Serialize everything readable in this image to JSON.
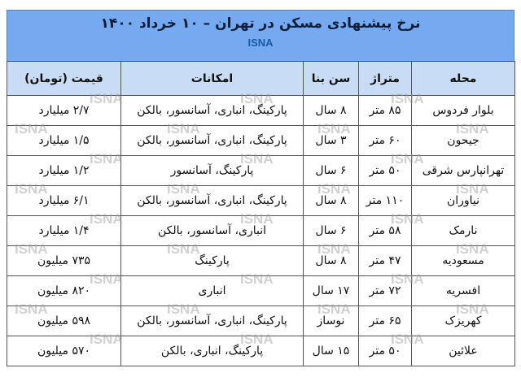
{
  "title": "نرخ پیشنهادی مسکن در تهران – ۱۰ خرداد ۱۴۰۰",
  "source": "ISNA",
  "watermark": "ISNA",
  "colors": {
    "title_band": "#75aaf0",
    "header_row": "#c9dcf5",
    "source_text": "#1d5aa5"
  },
  "headers": [
    "محله",
    "متراژ",
    "سن بنا",
    "امکانات",
    "قیمت (تومان)"
  ],
  "rows": [
    [
      "بلوار فردوس",
      "۸۵ متر",
      "۸ سال",
      "پارکینگ، انباری، آسانسور، بالکن",
      "۲/۷ میلیارد"
    ],
    [
      "جیحون",
      "۶۰ متر",
      "۳ سال",
      "پارکینگ، انباری، آسانسور، بالکن",
      "۱/۵ میلیارد"
    ],
    [
      "تهرانپارس شرقی",
      "۵۰ متر",
      "۶ سال",
      "پارکینگ، آسانسور",
      "۱/۲ میلیارد"
    ],
    [
      "نیاوران",
      "۱۱۰ متر",
      "۸ سال",
      "پارکینگ، انباری، آسانسور، بالکن",
      "۶/۱ میلیارد"
    ],
    [
      "نارمک",
      "۵۸ متر",
      "۶ سال",
      "انباری، آسانسور، بالکن",
      "۱/۴ میلیارد"
    ],
    [
      "مسعودیه",
      "۴۷ متر",
      "۸ سال",
      "پارکینگ",
      "۷۳۵ میلیون"
    ],
    [
      "افسریه",
      "۷۲ متر",
      "۱۷ سال",
      "انباری",
      "۸۲۰ میلیون"
    ],
    [
      "کهریزک",
      "۶۵ متر",
      "نوساز",
      "پارکینگ، انباری، آسانسور، بالکن",
      "۵۹۸ میلیون"
    ],
    [
      "علائین",
      "۵۰ متر",
      "۱۵ سال",
      "پارکینگ، انباری، بالکن",
      "۵۷۰ میلیون"
    ]
  ]
}
